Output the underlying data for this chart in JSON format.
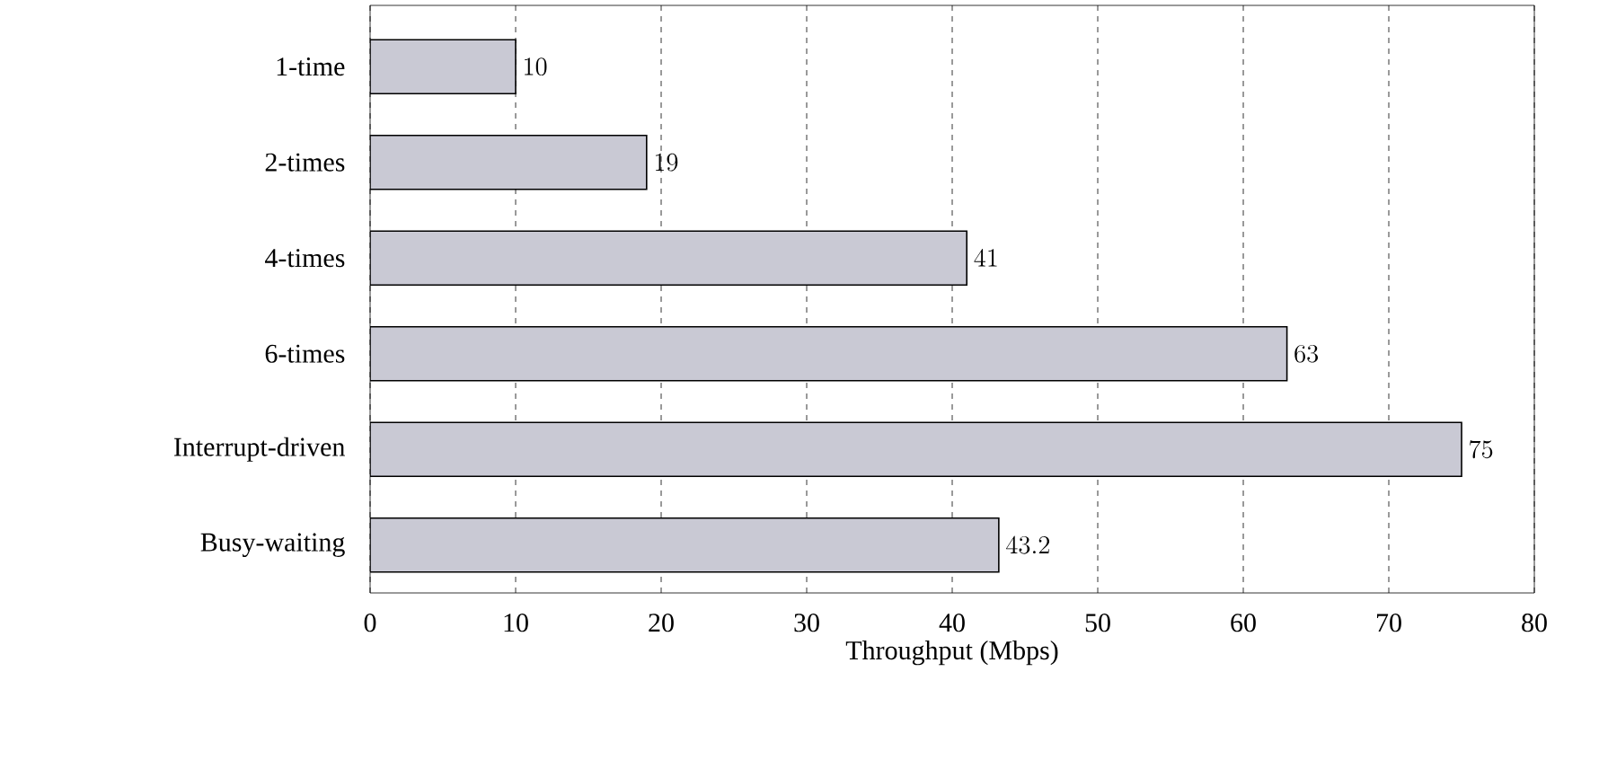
{
  "chart_data": {
    "type": "bar",
    "orientation": "horizontal",
    "xlabel": "Throughput (Mbps)",
    "categories": [
      "1-time",
      "2-times",
      "4-times",
      "6-times",
      "Interrupt-driven",
      "Busy-waiting"
    ],
    "values": [
      10,
      19,
      41,
      63,
      75,
      43.2
    ],
    "color": "#c9c9d4",
    "xlim": [
      0,
      80
    ],
    "xticks": [
      0,
      10,
      20,
      30,
      40,
      50,
      60,
      70,
      80
    ],
    "grid": "x",
    "data_labels": true
  }
}
